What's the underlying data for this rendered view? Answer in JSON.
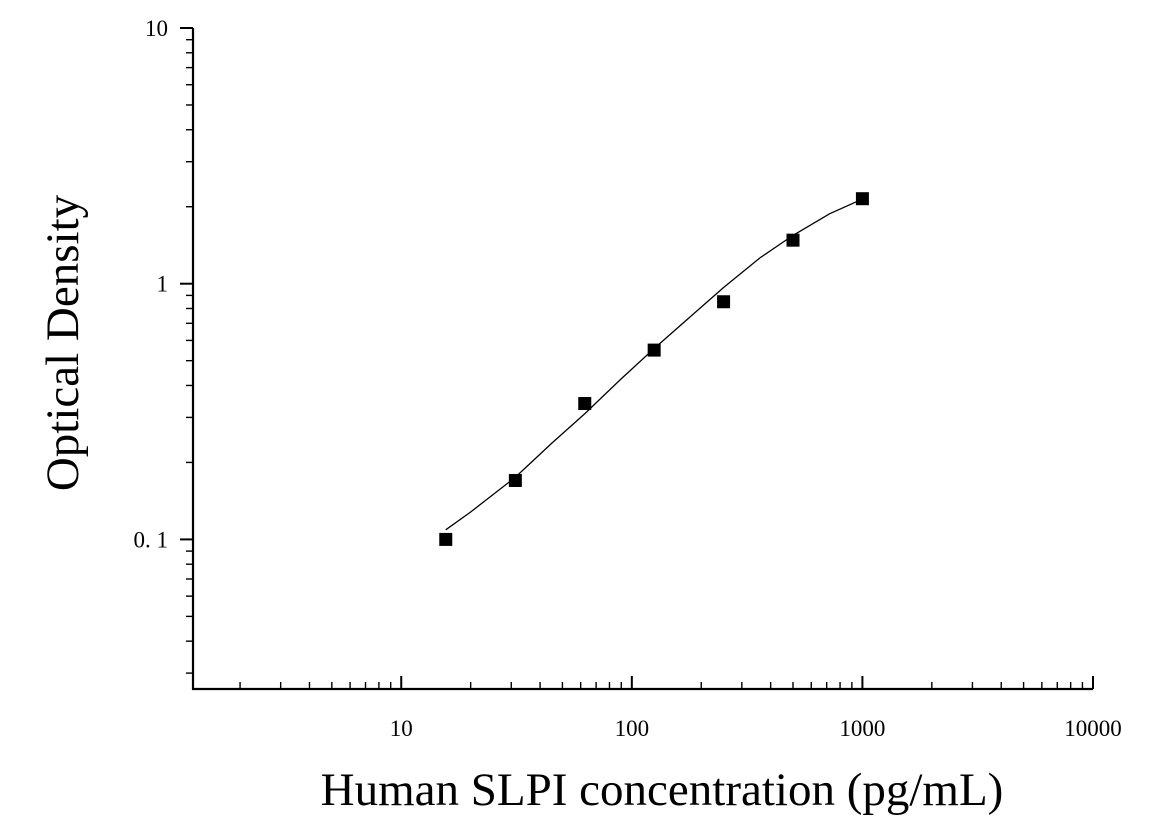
{
  "chart_data": {
    "type": "scatter",
    "title": "",
    "xlabel": "Human SLPI concentration (pg/mL)",
    "ylabel": "Optical Density",
    "x_scale": "log",
    "y_scale": "log",
    "xlim": [
      1.25,
      10000
    ],
    "ylim": [
      0.026,
      10
    ],
    "x_ticks": [
      10,
      100,
      1000,
      10000
    ],
    "x_tick_labels": [
      "10",
      "100",
      "1000",
      "10000"
    ],
    "y_ticks": [
      0.1,
      1,
      10
    ],
    "y_tick_labels": [
      "0. 1",
      "1",
      "10"
    ],
    "grid": false,
    "legend": "none",
    "marker": "square",
    "series": [
      {
        "x": [
          15.6,
          31.25,
          62.5,
          125,
          250,
          500,
          1000
        ],
        "y": [
          0.1,
          0.17,
          0.34,
          0.55,
          0.85,
          1.48,
          2.15
        ]
      }
    ],
    "fit_curve": {
      "type": "line",
      "x": [
        15.6,
        20,
        31.25,
        45,
        62.5,
        90,
        125,
        180,
        250,
        360,
        500,
        720,
        1000
      ],
      "y": [
        0.109,
        0.128,
        0.175,
        0.238,
        0.31,
        0.425,
        0.558,
        0.745,
        0.966,
        1.263,
        1.545,
        1.877,
        2.143
      ]
    }
  }
}
